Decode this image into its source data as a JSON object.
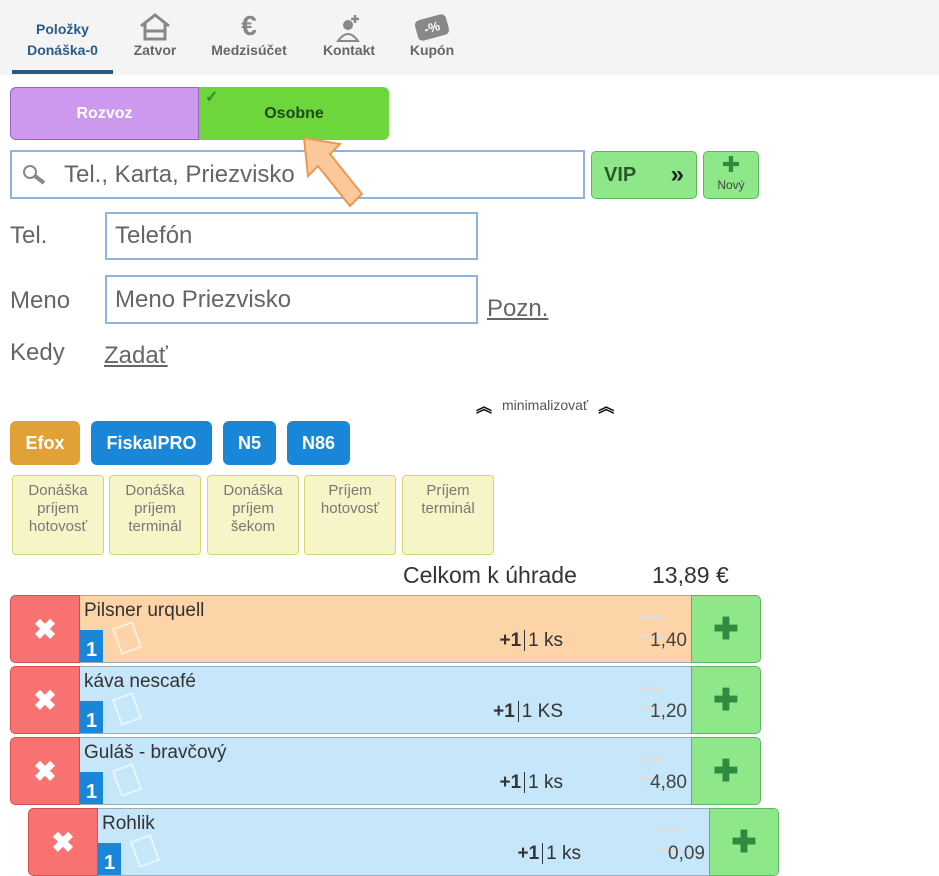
{
  "tabs": [
    {
      "l1": "Položky",
      "l2": "Donáška-0",
      "icon": "list"
    },
    {
      "label": "Zatvor",
      "icon": "home-icon"
    },
    {
      "label": "Medzisúčet",
      "icon": "euro-icon",
      "glyph": "€"
    },
    {
      "label": "Kontakt",
      "icon": "add-user-icon"
    },
    {
      "label": "Kupón",
      "icon": "coupon-icon",
      "glyph": "-%"
    }
  ],
  "delivery": {
    "rozvoz": "Rozvoz",
    "osobne": "Osobne",
    "selected": "Osobne",
    "check": "✓"
  },
  "search": {
    "placeholder": "Tel., Karta, Priezvisko",
    "vip": "VIP",
    "vip_arrow": "»",
    "new_label": "Nový",
    "plus": "✚"
  },
  "form": {
    "tel_label": "Tel.",
    "tel_placeholder": "Telefón",
    "meno_label": "Meno",
    "meno_placeholder": "Meno Priezvisko",
    "pozn": "Pozn.",
    "kedy_label": "Kedy",
    "zadat": "Zadať"
  },
  "minimize": {
    "label": "minimalizovať",
    "chev": "︽"
  },
  "printers": [
    {
      "label": "Efox",
      "color": "#e0a236"
    },
    {
      "label": "FiskalPRO",
      "color": "#1a86d8"
    },
    {
      "label": "N5",
      "color": "#1a86d8"
    },
    {
      "label": "N86",
      "color": "#1a86d8"
    }
  ],
  "payments": [
    "Donáška príjem hotovosť",
    "Donáška príjem terminál",
    "Donáška príjem šekom",
    "Príjem hotovosť",
    "Príjem terminál"
  ],
  "total": {
    "label": "Celkom k úhrade",
    "value": "13,89 €"
  },
  "items": [
    {
      "name": "Pilsner urquell",
      "count": "1",
      "add": "+1",
      "unit": "1 ks",
      "price": "1,40",
      "color": "#fdd4a8"
    },
    {
      "name": "káva nescafé",
      "count": "1",
      "add": "+1",
      "unit": "1 KS",
      "price": "1,20",
      "color": "#c6e6fa"
    },
    {
      "name": "Guláš - bravčový",
      "count": "1",
      "add": "+1",
      "unit": "1 ks",
      "price": "4,80",
      "color": "#c6e6fa"
    },
    {
      "name": "Rohlik",
      "count": "1",
      "add": "+1",
      "unit": "1 ks",
      "price": "0,09",
      "color": "#c6e6fa"
    }
  ],
  "remove_glyph": "✖"
}
